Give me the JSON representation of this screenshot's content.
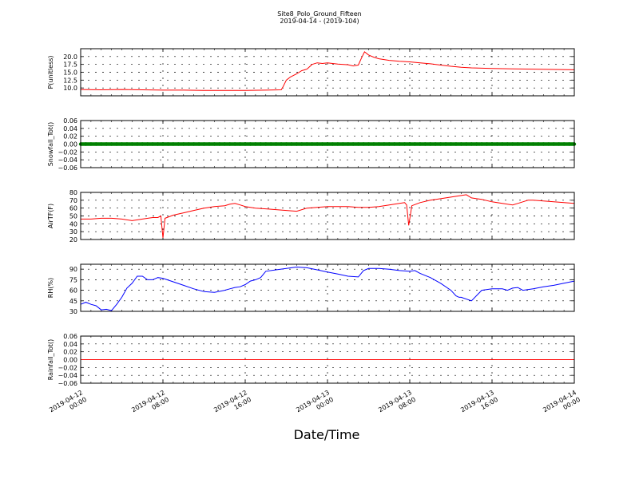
{
  "figure": {
    "title": "Site8_Polo_Ground_Fifteen",
    "subtitle": "2019-04-14 - (2019-104)",
    "xlabel": "Date/Time",
    "x_tick_labels": [
      [
        "2019-04-12",
        "00:00"
      ],
      [
        "2019-04-12",
        "08:00"
      ],
      [
        "2019-04-12",
        "16:00"
      ],
      [
        "2019-04-13",
        "00:00"
      ],
      [
        "2019-04-13",
        "08:00"
      ],
      [
        "2019-04-13",
        "16:00"
      ],
      [
        "2019-04-14",
        "00:00"
      ]
    ],
    "x_range_hours": [
      0,
      48
    ],
    "colors": {
      "red": "#ff0000",
      "green": "#008000",
      "blue": "#0000ff"
    }
  },
  "chart_data": [
    {
      "type": "line",
      "ylabel": "P(unitless)",
      "ylim": [
        7.5,
        22.5
      ],
      "y_ticks": [
        10.0,
        12.5,
        15.0,
        17.5,
        20.0
      ],
      "y_tick_labels": [
        "10.0",
        "12.5",
        "15.0",
        "17.5",
        "20.0"
      ],
      "grid": true,
      "series": [
        {
          "color": "#ff0000",
          "x": [
            0,
            2,
            4,
            6,
            8,
            10,
            12,
            14,
            16,
            18,
            19.5,
            19.7,
            20.0,
            20.4,
            21.0,
            21.5,
            22.0,
            22.5,
            23.0,
            23.5,
            24.0,
            25.0,
            26.0,
            26.5,
            27.0,
            27.3,
            27.6,
            28.0,
            28.5,
            29.0,
            30.0,
            31.0,
            32.0,
            33.0,
            34.0,
            35.0,
            36.0,
            37.0,
            38.0,
            40.0,
            42.0,
            44.0,
            46.0,
            48.0
          ],
          "y": [
            9.5,
            9.4,
            9.5,
            9.4,
            9.3,
            9.3,
            9.2,
            9.2,
            9.2,
            9.3,
            9.4,
            10.5,
            12.5,
            13.5,
            14.5,
            15.5,
            16.0,
            17.5,
            18.0,
            17.8,
            18.0,
            17.6,
            17.4,
            17.0,
            17.3,
            19.5,
            21.5,
            20.5,
            19.8,
            19.3,
            18.8,
            18.5,
            18.3,
            18.0,
            17.7,
            17.3,
            16.9,
            16.6,
            16.4,
            16.2,
            16.1,
            16.0,
            15.9,
            15.8
          ]
        }
      ]
    },
    {
      "type": "line",
      "ylabel": "Snowfall_Tot()",
      "ylim": [
        -0.06,
        0.06
      ],
      "y_ticks": [
        -0.06,
        -0.04,
        -0.02,
        0.0,
        0.02,
        0.04,
        0.06
      ],
      "y_tick_labels": [
        "−0.06",
        "−0.04",
        "−0.02",
        "0.00",
        "0.02",
        "0.04",
        "0.06"
      ],
      "grid": true,
      "series": [
        {
          "color": "#008000",
          "markers": true,
          "x": [
            0,
            48
          ],
          "y": [
            0.0,
            0.0
          ]
        }
      ]
    },
    {
      "type": "line",
      "ylabel": "AirTF(F)",
      "ylim": [
        20,
        80
      ],
      "y_ticks": [
        20,
        30,
        40,
        50,
        60,
        70,
        80
      ],
      "y_tick_labels": [
        "20",
        "30",
        "40",
        "50",
        "60",
        "70",
        "80"
      ],
      "grid": true,
      "series": [
        {
          "color": "#ff0000",
          "x": [
            0,
            1,
            2,
            3,
            4,
            5,
            5.5,
            6,
            7,
            7.5,
            7.8,
            8.0,
            8.2,
            9,
            10,
            11,
            12,
            13,
            14,
            14.5,
            15,
            15.5,
            16,
            17,
            18,
            19,
            20,
            21,
            22,
            23,
            24,
            25,
            26,
            27,
            28,
            29,
            30,
            31,
            31.5,
            31.7,
            31.9,
            32.2,
            33,
            34,
            35,
            36,
            37,
            37.5,
            38,
            38.5,
            39,
            40,
            41,
            42,
            42.5,
            43,
            43.5,
            44,
            45,
            46,
            47,
            48
          ],
          "y": [
            46,
            46,
            47,
            47,
            46,
            44,
            45,
            46,
            48,
            48,
            50,
            22,
            47,
            51,
            54,
            57,
            60,
            62,
            63,
            65,
            66,
            64,
            62,
            60,
            59,
            58,
            57,
            56,
            60,
            61,
            62,
            62,
            62,
            61,
            61,
            62,
            64,
            66,
            67,
            64,
            38,
            63,
            67,
            70,
            72,
            74,
            76,
            77,
            73,
            72,
            71,
            68,
            66,
            64,
            66,
            68,
            70,
            70,
            69,
            68,
            67,
            66
          ]
        }
      ]
    },
    {
      "type": "line",
      "ylabel": "RH(%)",
      "ylim": [
        30,
        97
      ],
      "y_ticks": [
        30,
        45,
        60,
        75,
        90
      ],
      "y_tick_labels": [
        "30",
        "45",
        "60",
        "75",
        "90"
      ],
      "grid": true,
      "series": [
        {
          "color": "#0000ff",
          "x": [
            0,
            0.5,
            1.0,
            1.5,
            2.0,
            2.5,
            3.0,
            3.5,
            4.0,
            4.5,
            5.0,
            5.5,
            6.0,
            6.5,
            7.0,
            7.5,
            8.0,
            9,
            10,
            11,
            12,
            13,
            14,
            14.5,
            15,
            15.5,
            16,
            16.5,
            17,
            17.5,
            18,
            19,
            20,
            21,
            22,
            23,
            24,
            25,
            26,
            27,
            27.5,
            28,
            29,
            30,
            31,
            32,
            32.5,
            33,
            34,
            35,
            36,
            36.5,
            36.8,
            37,
            38,
            39,
            40,
            41,
            41.5,
            42,
            42.5,
            43,
            44,
            45,
            46,
            47,
            48
          ],
          "y": [
            40,
            43,
            40,
            38,
            32,
            33,
            31,
            40,
            50,
            63,
            70,
            80,
            80,
            75,
            75,
            78,
            77,
            72,
            67,
            62,
            58,
            57,
            60,
            62,
            64,
            65,
            68,
            73,
            75,
            78,
            87,
            89,
            91,
            93,
            92,
            89,
            86,
            83,
            80,
            79,
            88,
            91,
            91,
            90,
            88,
            87,
            88,
            84,
            78,
            70,
            60,
            52,
            50,
            50,
            45,
            60,
            62,
            62,
            60,
            63,
            64,
            60,
            62,
            65,
            67,
            70,
            73
          ]
        }
      ]
    },
    {
      "type": "line",
      "ylabel": "Rainfall_Tot()",
      "ylim": [
        -0.06,
        0.06
      ],
      "y_ticks": [
        -0.06,
        -0.04,
        -0.02,
        0.0,
        0.02,
        0.04,
        0.06
      ],
      "y_tick_labels": [
        "−0.06",
        "−0.04",
        "−0.02",
        "0.00",
        "0.02",
        "0.04",
        "0.06"
      ],
      "grid": true,
      "series": [
        {
          "color": "#ff0000",
          "x": [
            0,
            48
          ],
          "y": [
            0.0,
            0.0
          ]
        }
      ]
    }
  ]
}
